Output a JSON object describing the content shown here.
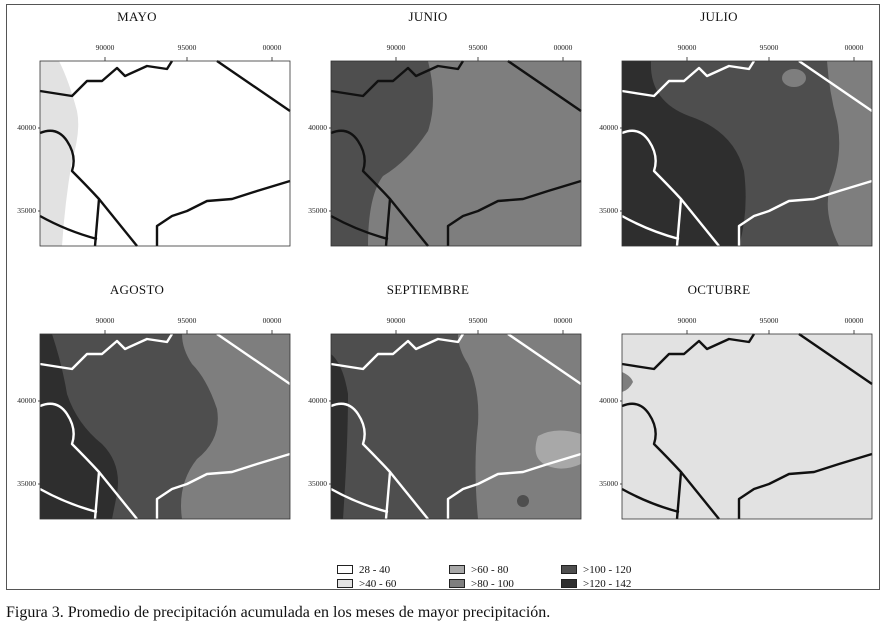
{
  "figure": {
    "caption": "Figura 3. Promedio de precipitación acumulada en los meses de mayor precipitación."
  },
  "axes": {
    "x_ticks": [
      "90000",
      "95000",
      "00000"
    ],
    "y_ticks": [
      "40000",
      "35000"
    ]
  },
  "colors": {
    "c28_40": "#ffffff",
    "c40_60": "#e2e2e2",
    "c60_80": "#a8a8a8",
    "c80_100": "#7e7e7e",
    "c100_120": "#4e4e4e",
    "c120_142": "#2e2e2e",
    "boundary_dark": "#111111",
    "boundary_light": "#ffffff"
  },
  "panels": [
    {
      "id": "mayo",
      "title": "MAYO",
      "dominant_class": "28 - 40",
      "secondary_class": ">40 - 60",
      "boundary_color": "dark"
    },
    {
      "id": "junio",
      "title": "JUNIO",
      "dominant_class": ">80 - 100",
      "secondary_class": ">100 - 120",
      "boundary_color": "dark"
    },
    {
      "id": "julio",
      "title": "JULIO",
      "dominant_class": ">100 - 120",
      "secondary_class": ">120 - 142",
      "boundary_color": "light"
    },
    {
      "id": "agosto",
      "title": "AGOSTO",
      "dominant_class": ">100 - 120",
      "secondary_class": ">80 - 100",
      "boundary_color": "light"
    },
    {
      "id": "septiembre",
      "title": "SEPTIEMBRE",
      "dominant_class": ">100 - 120",
      "secondary_class": ">80 - 100",
      "boundary_color": "light"
    },
    {
      "id": "octubre",
      "title": "OCTUBRE",
      "dominant_class": ">40 - 60",
      "secondary_class": ">80 - 100",
      "boundary_color": "dark"
    }
  ],
  "legend": {
    "items": [
      {
        "label": "28 - 40",
        "color": "#ffffff"
      },
      {
        "label": ">40 - 60",
        "color": "#e2e2e2"
      },
      {
        "label": ">60 - 80",
        "color": "#a8a8a8"
      },
      {
        "label": ">80 - 100",
        "color": "#7e7e7e"
      },
      {
        "label": ">100 - 120",
        "color": "#4e4e4e"
      },
      {
        "label": ">120 - 142",
        "color": "#2e2e2e"
      }
    ]
  }
}
